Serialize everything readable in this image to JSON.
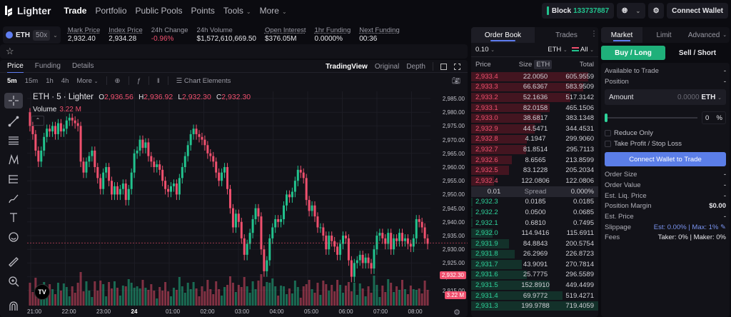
{
  "nav": {
    "brand": "Lighter",
    "links": [
      {
        "label": "Trade",
        "active": true
      },
      {
        "label": "Portfolio"
      },
      {
        "label": "Public Pools"
      },
      {
        "label": "Points"
      },
      {
        "label": "Tools",
        "dropdown": true
      },
      {
        "label": "More",
        "dropdown": true
      }
    ],
    "block_label": "Block",
    "block_number": "133737887",
    "connect_wallet": "Connect Wallet"
  },
  "market": {
    "symbol": "ETH",
    "leverage": "50x",
    "stats": [
      {
        "label": "Mark Price",
        "value": "2,932.40"
      },
      {
        "label": "Index Price",
        "value": "2,934.28"
      },
      {
        "label": "24h Change",
        "value": "-0.96%",
        "negative": true
      },
      {
        "label": "24h Volume",
        "value": "$1,572,610,669.50"
      },
      {
        "label": "Open Interest",
        "value": "$376.05M"
      },
      {
        "label": "1hr Funding",
        "value": "0.0000%"
      },
      {
        "label": "Next Funding",
        "value": "00:36"
      }
    ]
  },
  "chart": {
    "tabs": [
      "Price",
      "Funding",
      "Details"
    ],
    "views": [
      "TradingView",
      "Original",
      "Depth"
    ],
    "intervals": [
      "5m",
      "15m",
      "1h",
      "4h",
      "More"
    ],
    "chart_elements": "Chart Elements",
    "title": "ETH · 5 · Lighter",
    "ohlc": {
      "o": "2,936.56",
      "h": "2,936.92",
      "l": "2,932.30",
      "c": "2,932.30"
    },
    "volume_label": "Volume",
    "volume_value": "3.22 M",
    "y_ticks": [
      "2,985.00",
      "2,980.00",
      "2,975.00",
      "2,970.00",
      "2,965.00",
      "2,960.00",
      "2,955.00",
      "2,950.00",
      "2,945.00",
      "2,940.00",
      "2,935.00",
      "2,930.00",
      "2,925.00",
      "2,920.00",
      "2,915.00"
    ],
    "x_ticks": [
      "21:00",
      "22:00",
      "23:00",
      "24",
      "01:00",
      "02:00",
      "03:00",
      "04:00",
      "05:00",
      "06:00",
      "07:00",
      "08:00"
    ],
    "last_price_tag": "2,932.30",
    "volume_tag": "3.22 M"
  },
  "orderbook": {
    "tabs": [
      "Order Book",
      "Trades"
    ],
    "tick": "0.10",
    "unit": "ETH",
    "filter": "All",
    "headers": {
      "price": "Price",
      "size": "Size",
      "size_unit": "ETH",
      "total": "Total"
    },
    "asks": [
      {
        "price": "2,933.4",
        "size": "22.0050",
        "total": "605.9559",
        "depth": 0.92
      },
      {
        "price": "2,933.3",
        "size": "66.6367",
        "total": "583.9509",
        "depth": 0.88
      },
      {
        "price": "2,933.2",
        "size": "52.1636",
        "total": "517.3142",
        "depth": 0.78
      },
      {
        "price": "2,933.1",
        "size": "82.0158",
        "total": "465.1506",
        "depth": 0.62
      },
      {
        "price": "2,933.0",
        "size": "38.6817",
        "total": "383.1348",
        "depth": 0.55
      },
      {
        "price": "2,932.9",
        "size": "44.5471",
        "total": "344.4531",
        "depth": 0.5
      },
      {
        "price": "2,932.8",
        "size": "4.1947",
        "total": "299.9060",
        "depth": 0.44
      },
      {
        "price": "2,932.7",
        "size": "81.8514",
        "total": "295.7113",
        "depth": 0.43
      },
      {
        "price": "2,932.6",
        "size": "8.6565",
        "total": "213.8599",
        "depth": 0.32
      },
      {
        "price": "2,932.5",
        "size": "83.1228",
        "total": "205.2034",
        "depth": 0.3
      },
      {
        "price": "2,932.4",
        "size": "122.0806",
        "total": "122.0806",
        "depth": 0.18
      }
    ],
    "spread": {
      "value": "0.01",
      "label": "Spread",
      "pct": "0.000%"
    },
    "bids": [
      {
        "price": "2,932.3",
        "size": "0.0185",
        "total": "0.0185",
        "depth": 0.01
      },
      {
        "price": "2,932.2",
        "size": "0.0500",
        "total": "0.0685",
        "depth": 0.01
      },
      {
        "price": "2,932.1",
        "size": "0.6810",
        "total": "0.7495",
        "depth": 0.01
      },
      {
        "price": "2,932.0",
        "size": "114.9416",
        "total": "115.6911",
        "depth": 0.17
      },
      {
        "price": "2,931.9",
        "size": "84.8843",
        "total": "200.5754",
        "depth": 0.3
      },
      {
        "price": "2,931.8",
        "size": "26.2969",
        "total": "226.8723",
        "depth": 0.34
      },
      {
        "price": "2,931.7",
        "size": "43.9091",
        "total": "270.7814",
        "depth": 0.4
      },
      {
        "price": "2,931.6",
        "size": "25.7775",
        "total": "296.5589",
        "depth": 0.44
      },
      {
        "price": "2,931.5",
        "size": "152.8910",
        "total": "449.4499",
        "depth": 0.62
      },
      {
        "price": "2,931.4",
        "size": "69.9772",
        "total": "519.4271",
        "depth": 0.72
      },
      {
        "price": "2,931.3",
        "size": "199.9788",
        "total": "719.4059",
        "depth": 1.0
      }
    ]
  },
  "trade": {
    "tabs": [
      "Market",
      "Limit",
      "Advanced"
    ],
    "buy_label": "Buy / Long",
    "sell_label": "Sell / Short",
    "available_label": "Available to Trade",
    "available_value": "-",
    "position_label": "Position",
    "position_value": "-",
    "amount_label": "Amount",
    "amount_placeholder": "0.0000",
    "amount_unit": "ETH",
    "slider_pct": "0",
    "pct_sign": "%",
    "reduce_only": "Reduce Only",
    "tpsl": "Take Profit / Stop Loss",
    "connect_label": "Connect Wallet to Trade",
    "summary": [
      {
        "label": "Order Size",
        "value": "-"
      },
      {
        "label": "Order Value",
        "value": "-"
      },
      {
        "label": "Est. Liq. Price",
        "value": "-"
      },
      {
        "label": "Position Margin",
        "value": "$0.00"
      },
      {
        "label": "Est. Price",
        "value": "-"
      }
    ],
    "slippage_label": "Slippage",
    "slippage_value": "Est: 0.00% | Max: 1%",
    "fees_label": "Fees",
    "fees_value": "Taker: 0% | Maker: 0%"
  },
  "colors": {
    "up": "#22c38e",
    "down": "#f0506e",
    "accent": "#5f7df0",
    "buy_button": "#1fb07a",
    "connect_button": "#5b7ee8"
  }
}
